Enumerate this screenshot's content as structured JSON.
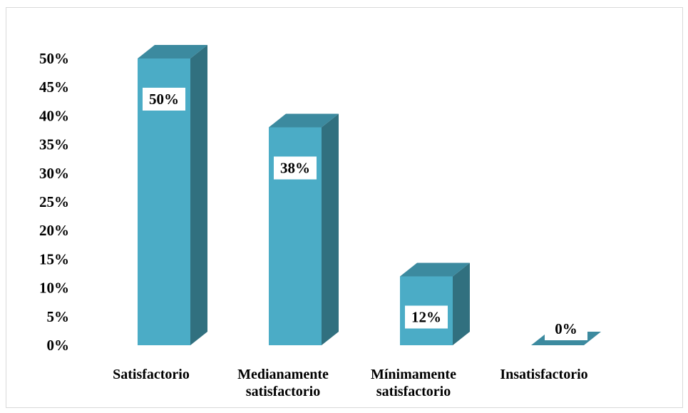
{
  "chart_data": {
    "type": "bar",
    "style": "3d-column",
    "categories": [
      [
        "Satisfactorio"
      ],
      [
        "Medianamente",
        "satisfactorio"
      ],
      [
        "Mínimamente",
        "satisfactorio"
      ],
      [
        "Insatisfactorio"
      ]
    ],
    "values": [
      50,
      38,
      12,
      0
    ],
    "data_labels": [
      "50%",
      "38%",
      "12%",
      "0%"
    ],
    "y_ticks": [
      "0%",
      "5%",
      "10%",
      "15%",
      "20%",
      "25%",
      "30%",
      "35%",
      "40%",
      "45%",
      "50%"
    ],
    "ylim": [
      0,
      50
    ],
    "title": "",
    "xlabel": "",
    "ylabel": "",
    "grid": false,
    "legend": "none",
    "colors": {
      "front": "#4bacc6",
      "side": "#31707f",
      "top": "#3c8a9f",
      "border": "#d9d9d9"
    }
  }
}
